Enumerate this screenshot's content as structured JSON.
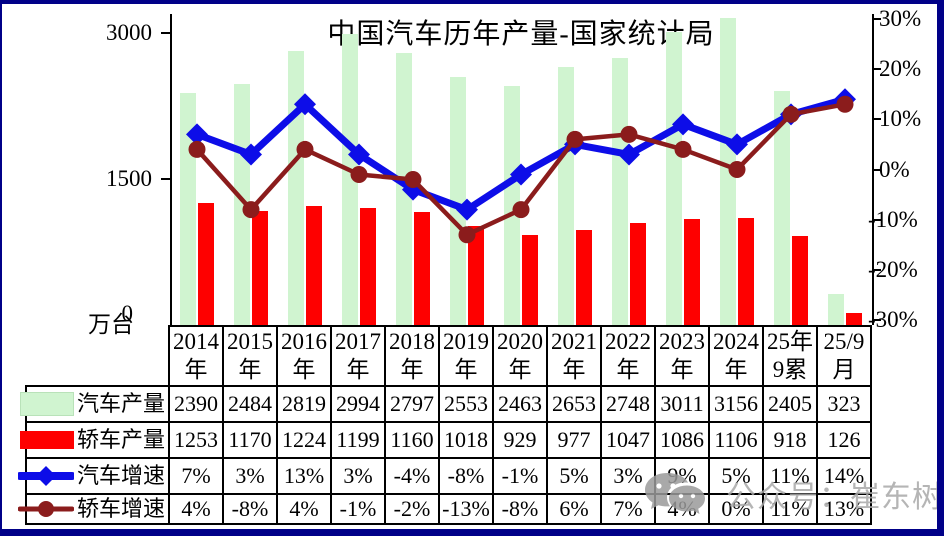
{
  "page": {
    "background": "#ffffff",
    "border_color": "#000088"
  },
  "chart_data": {
    "type": "combo",
    "title": "中国汽车历年产量-国家统计局",
    "unit_label": "万台",
    "grid": false,
    "legend_position": "table-left-column",
    "categories": [
      "2014年",
      "2015年",
      "2016年",
      "2017年",
      "2018年",
      "2019年",
      "2020年",
      "2021年",
      "2022年",
      "2023年",
      "2024年",
      "25年9累",
      "25/9月"
    ],
    "category_label_lines": [
      [
        "2014",
        "年"
      ],
      [
        "2015",
        "年"
      ],
      [
        "2016",
        "年"
      ],
      [
        "2017",
        "年"
      ],
      [
        "2018",
        "年"
      ],
      [
        "2019",
        "年"
      ],
      [
        "2020",
        "年"
      ],
      [
        "2021",
        "年"
      ],
      [
        "2022",
        "年"
      ],
      [
        "2023",
        "年"
      ],
      [
        "2024",
        "年"
      ],
      [
        "25年",
        "9累"
      ],
      [
        "25/9",
        "月"
      ]
    ],
    "left_axis": {
      "unit": "万台",
      "min": 0,
      "max": 3200,
      "tick_labels": [
        "3000",
        "1500",
        "0"
      ],
      "tick_values": [
        3000,
        1500,
        0
      ]
    },
    "right_axis": {
      "min": -31,
      "max": 31,
      "tick_labels": [
        "30%",
        "20%",
        "10%",
        "0%",
        "-10%",
        "-20%",
        "-30%"
      ],
      "tick_values": [
        30,
        20,
        10,
        0,
        -10,
        -20,
        -30
      ]
    },
    "series": [
      {
        "name": "汽车产量",
        "type": "bar",
        "axis": "left",
        "color": "#d0f4d0",
        "swatch_border": "#b9e2b9",
        "values": [
          2390,
          2484,
          2819,
          2994,
          2797,
          2553,
          2463,
          2653,
          2748,
          3011,
          3156,
          2405,
          323
        ],
        "table_values": [
          "2390",
          "2484",
          "2819",
          "2994",
          "2797",
          "2553",
          "2463",
          "2653",
          "2748",
          "3011",
          "3156",
          "2405",
          "323"
        ]
      },
      {
        "name": "轿车产量",
        "type": "bar",
        "axis": "left",
        "color": "#fe0000",
        "swatch_border": "#fe0000",
        "values": [
          1253,
          1170,
          1224,
          1199,
          1160,
          1018,
          929,
          977,
          1047,
          1086,
          1106,
          918,
          126
        ],
        "table_values": [
          "1253",
          "1170",
          "1224",
          "1199",
          "1160",
          "1018",
          "929",
          "977",
          "1047",
          "1086",
          "1106",
          "918",
          "126"
        ]
      },
      {
        "name": "汽车增速",
        "type": "line",
        "axis": "right",
        "marker": "diamond",
        "color": "#0d0de8",
        "values": [
          7,
          3,
          13,
          3,
          -4,
          -8,
          -1,
          5,
          3,
          9,
          5,
          11,
          14
        ],
        "table_values": [
          "7%",
          "3%",
          "13%",
          "3%",
          "-4%",
          "-8%",
          "-1%",
          "5%",
          "3%",
          "9%",
          "5%",
          "11%",
          "14%"
        ]
      },
      {
        "name": "轿车增速",
        "type": "line",
        "axis": "right",
        "marker": "circle",
        "color": "#8b1c1c",
        "values": [
          4,
          -8,
          4,
          -1,
          -2,
          -13,
          -8,
          6,
          7,
          4,
          0,
          11,
          13
        ],
        "table_values": [
          "4%",
          "-8%",
          "4%",
          "-1%",
          "-2%",
          "-13%",
          "-8%",
          "6%",
          "7%",
          "4%",
          "0%",
          "11%",
          "13%"
        ]
      }
    ]
  },
  "watermark": {
    "icon": "wechat-icon",
    "text": "公众号：崔东树"
  }
}
